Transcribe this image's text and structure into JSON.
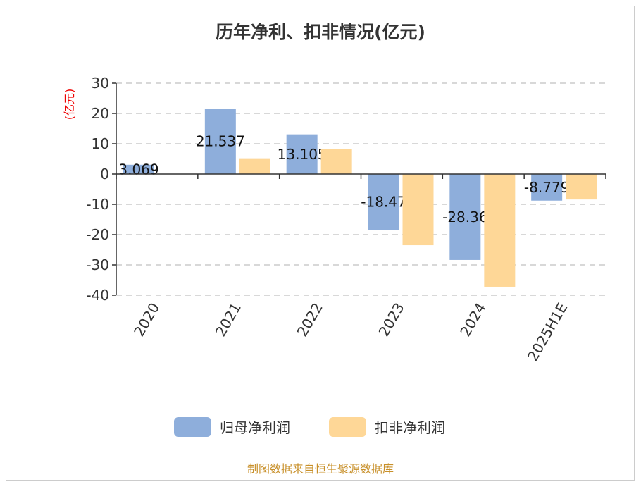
{
  "chart_data": {
    "type": "bar",
    "title": "历年净利、扣非情况(亿元)",
    "ylabel": "(亿元)",
    "ylim": [
      -40,
      30
    ],
    "yticks": [
      30,
      20,
      10,
      0,
      -10,
      -20,
      -30,
      -40
    ],
    "grid": true,
    "legend_position": "bottom",
    "categories": [
      "2020",
      "2021",
      "2022",
      "2023",
      "2024",
      "2025H1E"
    ],
    "series": [
      {
        "name": "归母净利润",
        "color": "#8eaedb",
        "values": [
          3.069,
          21.537,
          13.105,
          -18.47,
          -28.36,
          -8.779
        ],
        "labels": [
          "3.069",
          "21.537",
          "13.105",
          "-18.47",
          "-28.36",
          "-8.779"
        ]
      },
      {
        "name": "扣非净利润",
        "color": "#fed797",
        "values": [
          null,
          5.2,
          8.2,
          -23.5,
          -37.2,
          -8.4
        ]
      }
    ],
    "footer": "制图数据来自恒生聚源数据库"
  }
}
